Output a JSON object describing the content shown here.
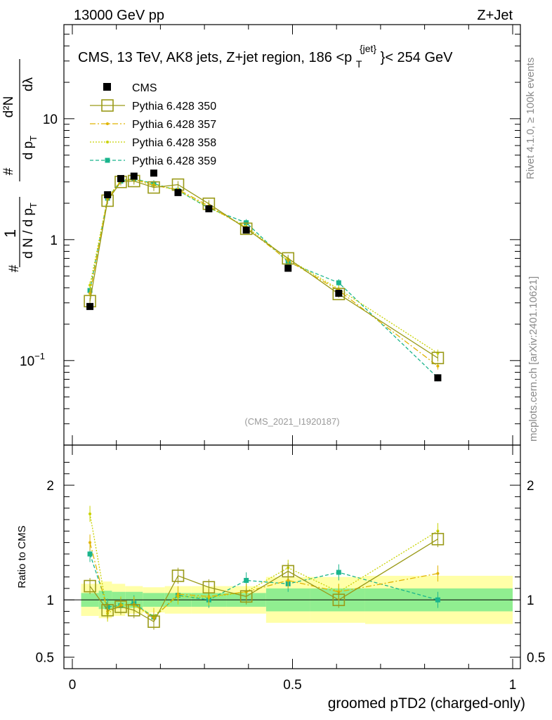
{
  "header": {
    "left": "13000 GeV pp",
    "right": "Z+Jet"
  },
  "side": {
    "rivet": "Rivet 4.1.0, ≥ 100k events",
    "mcplots": "mcplots.cern.ch [arXiv:2401.10621]"
  },
  "chart_data": {
    "type": "line",
    "title_main": "CMS, 13 TeV, AK8 jets, Z+jet region, 186 <p",
    "title_sup": "{jet}",
    "title_sub": "T",
    "title_end": "}< 254 GeV",
    "watermark": "(CMS_2021_I1920187)",
    "xlabel": "groomed pTD2 (charged-only)",
    "ylabel_ratio": "Ratio to CMS",
    "xlim": [
      0,
      1
    ],
    "ylim": [
      0.02,
      60
    ],
    "ratio_ylim": [
      0.4,
      2.35
    ],
    "x_ticks": [
      "0",
      "0.5",
      "1"
    ],
    "y_ticks": [
      {
        "v": 10,
        "label": "10"
      },
      {
        "v": 1,
        "label": "1"
      },
      {
        "v": 0.1,
        "label": "10",
        "sup": "−1"
      }
    ],
    "ratio_ticks": [
      {
        "v": 2,
        "label": "2"
      },
      {
        "v": 1,
        "label": "1"
      },
      {
        "v": 0.5,
        "label": "0.5"
      }
    ],
    "ylabel_parts": {
      "one": "1",
      "hash": "#",
      "denom": "d N / d p",
      "T": "T",
      "num": "d²N",
      "denom2": "d p",
      "T2": "T",
      "dl": "dλ",
      "hash2": "#"
    },
    "x": [
      0.04,
      0.08,
      0.11,
      0.14,
      0.185,
      0.24,
      0.31,
      0.395,
      0.49,
      0.605,
      0.83
    ],
    "bins": [
      0.02,
      0.06,
      0.09,
      0.12,
      0.16,
      0.21,
      0.27,
      0.35,
      0.44,
      0.54,
      0.665,
      1.0
    ],
    "data": {
      "name": "CMS",
      "values": [
        0.28,
        2.35,
        3.2,
        3.35,
        3.55,
        2.45,
        1.8,
        1.2,
        0.58,
        0.36,
        0.072
      ]
    },
    "band_inner": [
      0.06,
      0.08,
      0.07,
      0.07,
      0.06,
      0.06,
      0.06,
      0.06,
      0.1,
      0.1,
      0.1
    ],
    "band_outer": [
      0.14,
      0.16,
      0.14,
      0.12,
      0.11,
      0.12,
      0.12,
      0.12,
      0.2,
      0.2,
      0.21
    ],
    "series": [
      {
        "name": "Pythia 6.428 350",
        "color": "#9a9a18",
        "dash": "",
        "marker": "open-square",
        "values": [
          0.31,
          2.1,
          3.0,
          3.05,
          2.7,
          2.85,
          1.98,
          1.23,
          0.7,
          0.355,
          0.105
        ],
        "ratio": [
          1.12,
          0.91,
          0.94,
          0.91,
          0.81,
          1.21,
          1.11,
          1.03,
          1.25,
          1.0,
          1.53
        ]
      },
      {
        "name": "Pythia 6.428 357",
        "color": "#e0b400",
        "dash": "8,3,2,3",
        "marker": "dot",
        "values": [
          0.36,
          2.15,
          3.05,
          3.15,
          2.8,
          2.6,
          1.9,
          1.25,
          0.67,
          0.38,
          0.09
        ],
        "ratio": [
          1.5,
          0.9,
          0.95,
          0.96,
          0.84,
          1.05,
          1.03,
          1.07,
          1.17,
          1.07,
          1.23
        ]
      },
      {
        "name": "Pythia 6.428 358",
        "color": "#c8d200",
        "dash": "2,2",
        "marker": "dot",
        "values": [
          0.42,
          2.2,
          3.1,
          3.2,
          2.85,
          2.55,
          1.85,
          1.28,
          0.69,
          0.39,
          0.115
        ],
        "ratio": [
          1.75,
          0.88,
          0.96,
          0.95,
          0.86,
          1.03,
          1.02,
          1.07,
          1.28,
          1.07,
          1.6
        ]
      },
      {
        "name": "Pythia 6.428 359",
        "color": "#19b48c",
        "dash": "5,3",
        "marker": "filled-square",
        "values": [
          0.38,
          2.2,
          3.05,
          3.2,
          2.9,
          2.55,
          1.82,
          1.38,
          0.65,
          0.44,
          0.072
        ],
        "ratio": [
          1.4,
          0.94,
          0.95,
          0.97,
          0.85,
          1.04,
          1.0,
          1.17,
          1.14,
          1.24,
          1.0
        ]
      }
    ]
  }
}
